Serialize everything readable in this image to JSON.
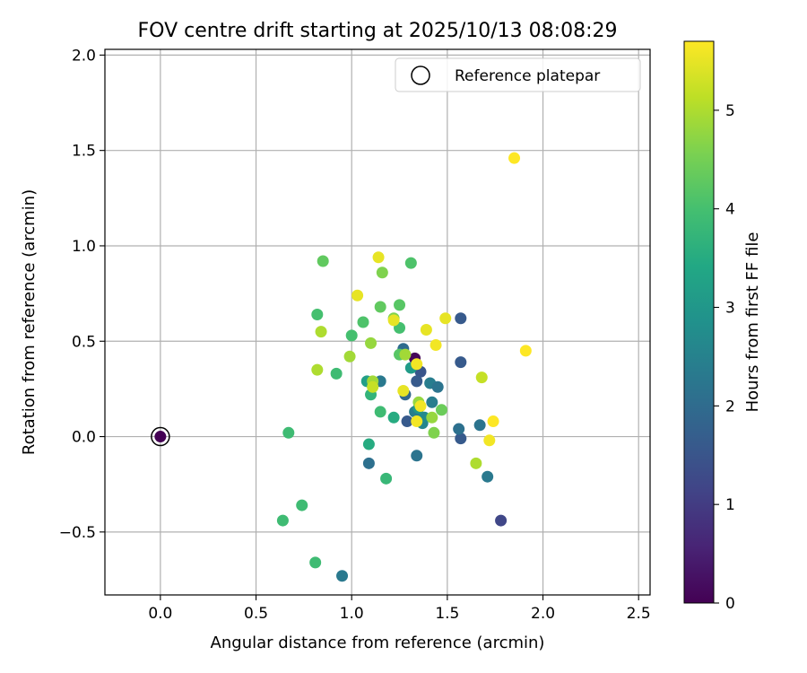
{
  "chart_data": {
    "type": "scatter",
    "title": "FOV centre drift starting at 2025/10/13 08:08:29",
    "xlabel": "Angular distance from reference (arcmin)",
    "ylabel": "Rotation from reference (arcmin)",
    "xlim": [
      -0.29,
      2.56
    ],
    "ylim": [
      -0.83,
      2.03
    ],
    "xticks": [
      0.0,
      0.5,
      1.0,
      1.5,
      2.0,
      2.5
    ],
    "xtick_labels": [
      "0.0",
      "0.5",
      "1.0",
      "1.5",
      "2.0",
      "2.5"
    ],
    "yticks": [
      -0.5,
      0.0,
      0.5,
      1.0,
      1.5,
      2.0
    ],
    "ytick_labels": [
      "−0.5",
      "0.0",
      "0.5",
      "1.0",
      "1.5",
      "2.0"
    ],
    "grid": true,
    "colormap": "viridis",
    "colorbar": {
      "label": "Hours from first FF file",
      "range": [
        0,
        5.7
      ],
      "ticks": [
        0,
        1,
        2,
        3,
        4,
        5
      ],
      "tick_labels": [
        "0",
        "1",
        "2",
        "3",
        "4",
        "5"
      ]
    },
    "legend": {
      "location": "top-right",
      "entries": [
        "Reference platepar"
      ]
    },
    "reference_point": {
      "x": 0.0,
      "y": 0.0
    },
    "points": [
      {
        "x": 0.0,
        "y": 0.0,
        "c": 0.0
      },
      {
        "x": 1.33,
        "y": 0.41,
        "c": 0.1
      },
      {
        "x": 1.78,
        "y": -0.44,
        "c": 1.2
      },
      {
        "x": 1.57,
        "y": 0.62,
        "c": 1.6
      },
      {
        "x": 1.57,
        "y": 0.39,
        "c": 1.6
      },
      {
        "x": 1.57,
        "y": -0.01,
        "c": 1.6
      },
      {
        "x": 1.36,
        "y": 0.34,
        "c": 1.5
      },
      {
        "x": 1.34,
        "y": 0.29,
        "c": 1.6
      },
      {
        "x": 1.29,
        "y": 0.08,
        "c": 1.6
      },
      {
        "x": 1.27,
        "y": 0.46,
        "c": 2.0
      },
      {
        "x": 1.28,
        "y": 0.22,
        "c": 1.9
      },
      {
        "x": 1.56,
        "y": 0.04,
        "c": 2.1
      },
      {
        "x": 1.67,
        "y": 0.06,
        "c": 2.2
      },
      {
        "x": 1.71,
        "y": -0.21,
        "c": 2.3
      },
      {
        "x": 1.34,
        "y": -0.1,
        "c": 2.2
      },
      {
        "x": 1.09,
        "y": -0.14,
        "c": 2.1
      },
      {
        "x": 0.95,
        "y": -0.73,
        "c": 2.3
      },
      {
        "x": 1.41,
        "y": 0.28,
        "c": 2.4
      },
      {
        "x": 1.45,
        "y": 0.26,
        "c": 2.2
      },
      {
        "x": 1.42,
        "y": 0.18,
        "c": 2.4
      },
      {
        "x": 1.15,
        "y": 0.29,
        "c": 2.3
      },
      {
        "x": 1.33,
        "y": 0.13,
        "c": 2.4
      },
      {
        "x": 1.37,
        "y": 0.07,
        "c": 2.6
      },
      {
        "x": 1.38,
        "y": 0.1,
        "c": 2.7
      },
      {
        "x": 1.35,
        "y": 0.15,
        "c": 3.0
      },
      {
        "x": 1.08,
        "y": 0.29,
        "c": 3.2
      },
      {
        "x": 1.31,
        "y": 0.36,
        "c": 3.1
      },
      {
        "x": 1.22,
        "y": 0.1,
        "c": 3.5
      },
      {
        "x": 1.09,
        "y": -0.04,
        "c": 3.5
      },
      {
        "x": 1.18,
        "y": -0.22,
        "c": 3.8
      },
      {
        "x": 1.15,
        "y": 0.13,
        "c": 3.9
      },
      {
        "x": 1.1,
        "y": 0.22,
        "c": 3.7
      },
      {
        "x": 0.67,
        "y": 0.02,
        "c": 3.9
      },
      {
        "x": 0.74,
        "y": -0.36,
        "c": 3.9
      },
      {
        "x": 0.64,
        "y": -0.44,
        "c": 3.9
      },
      {
        "x": 0.81,
        "y": -0.66,
        "c": 3.9
      },
      {
        "x": 0.92,
        "y": 0.33,
        "c": 3.9
      },
      {
        "x": 1.0,
        "y": 0.53,
        "c": 4.0
      },
      {
        "x": 1.06,
        "y": 0.6,
        "c": 4.1
      },
      {
        "x": 0.82,
        "y": 0.64,
        "c": 4.0
      },
      {
        "x": 1.31,
        "y": 0.91,
        "c": 4.1
      },
      {
        "x": 1.25,
        "y": 0.57,
        "c": 4.0
      },
      {
        "x": 1.25,
        "y": 0.69,
        "c": 4.2
      },
      {
        "x": 0.85,
        "y": 0.92,
        "c": 4.3
      },
      {
        "x": 1.15,
        "y": 0.68,
        "c": 4.3
      },
      {
        "x": 1.25,
        "y": 0.43,
        "c": 4.2
      },
      {
        "x": 1.47,
        "y": 0.14,
        "c": 4.4
      },
      {
        "x": 1.43,
        "y": 0.02,
        "c": 4.6
      },
      {
        "x": 1.16,
        "y": 0.86,
        "c": 4.6
      },
      {
        "x": 1.22,
        "y": 0.62,
        "c": 4.6
      },
      {
        "x": 1.1,
        "y": 0.49,
        "c": 4.8
      },
      {
        "x": 0.99,
        "y": 0.42,
        "c": 4.9
      },
      {
        "x": 1.28,
        "y": 0.43,
        "c": 4.9
      },
      {
        "x": 1.42,
        "y": 0.1,
        "c": 4.8
      },
      {
        "x": 1.35,
        "y": 0.18,
        "c": 4.8
      },
      {
        "x": 1.11,
        "y": 0.29,
        "c": 4.9
      },
      {
        "x": 0.82,
        "y": 0.35,
        "c": 5.0
      },
      {
        "x": 0.84,
        "y": 0.55,
        "c": 5.0
      },
      {
        "x": 1.65,
        "y": -0.14,
        "c": 5.0
      },
      {
        "x": 1.68,
        "y": 0.31,
        "c": 5.2
      },
      {
        "x": 1.11,
        "y": 0.26,
        "c": 5.2
      },
      {
        "x": 1.03,
        "y": 0.74,
        "c": 5.5
      },
      {
        "x": 1.14,
        "y": 0.94,
        "c": 5.5
      },
      {
        "x": 1.22,
        "y": 0.61,
        "c": 5.5
      },
      {
        "x": 1.27,
        "y": 0.24,
        "c": 5.5
      },
      {
        "x": 1.39,
        "y": 0.56,
        "c": 5.5
      },
      {
        "x": 1.49,
        "y": 0.62,
        "c": 5.5
      },
      {
        "x": 1.44,
        "y": 0.48,
        "c": 5.6
      },
      {
        "x": 1.34,
        "y": 0.38,
        "c": 5.6
      },
      {
        "x": 1.36,
        "y": 0.16,
        "c": 5.6
      },
      {
        "x": 1.34,
        "y": 0.08,
        "c": 5.6
      },
      {
        "x": 1.72,
        "y": -0.02,
        "c": 5.6
      },
      {
        "x": 1.74,
        "y": 0.08,
        "c": 5.7
      },
      {
        "x": 1.91,
        "y": 0.45,
        "c": 5.7
      },
      {
        "x": 1.85,
        "y": 1.46,
        "c": 5.7
      }
    ]
  }
}
